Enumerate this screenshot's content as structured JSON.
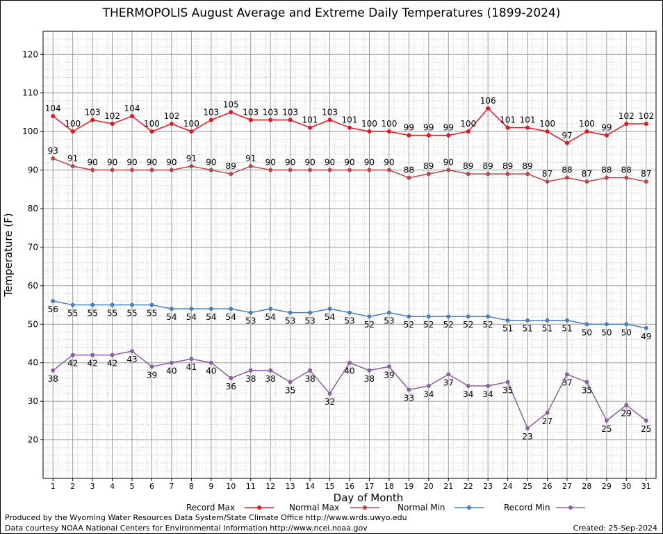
{
  "chart_data": {
    "type": "line",
    "title": "THERMOPOLIS August Average and Extreme Daily Temperatures (1899-2024)",
    "xlabel": "Day of Month",
    "ylabel": "Temperature (F)",
    "x": [
      1,
      2,
      3,
      4,
      5,
      6,
      7,
      8,
      9,
      10,
      11,
      12,
      13,
      14,
      15,
      16,
      17,
      18,
      19,
      20,
      21,
      22,
      23,
      24,
      25,
      26,
      27,
      28,
      29,
      30,
      31
    ],
    "xlim": [
      0.5,
      31.5
    ],
    "ylim": [
      10,
      126
    ],
    "yticks": [
      20,
      30,
      40,
      50,
      60,
      70,
      80,
      90,
      100,
      110,
      120
    ],
    "grid": true,
    "legend": "bottom",
    "series": [
      {
        "name": "Record Max",
        "color": "#e8141c",
        "values": [
          104,
          100,
          103,
          102,
          104,
          100,
          102,
          100,
          103,
          105,
          103,
          103,
          103,
          101,
          103,
          101,
          100,
          100,
          99,
          99,
          99,
          100,
          106,
          101,
          101,
          100,
          97,
          100,
          99,
          102,
          102
        ]
      },
      {
        "name": "Normal Max",
        "color": "#b94747",
        "values": [
          93,
          91,
          90,
          90,
          90,
          90,
          90,
          91,
          90,
          89,
          91,
          90,
          90,
          90,
          90,
          90,
          90,
          90,
          88,
          89,
          90,
          89,
          89,
          89,
          89,
          87,
          88,
          87,
          88,
          88,
          87
        ]
      },
      {
        "name": "Normal Min",
        "color": "#4a7fb8",
        "values": [
          56,
          55,
          55,
          55,
          55,
          55,
          54,
          54,
          54,
          54,
          53,
          54,
          53,
          53,
          54,
          53,
          52,
          53,
          52,
          52,
          52,
          52,
          52,
          51,
          51,
          51,
          51,
          50,
          50,
          50,
          49
        ]
      },
      {
        "name": "Record Min",
        "color": "#8a5fa0",
        "values": [
          38,
          42,
          42,
          42,
          43,
          39,
          40,
          41,
          40,
          36,
          38,
          38,
          35,
          38,
          32,
          40,
          38,
          39,
          33,
          34,
          37,
          34,
          34,
          35,
          23,
          27,
          37,
          35,
          25,
          29,
          25
        ]
      }
    ]
  },
  "footer": {
    "credit1": "Produced by the Wyoming Water Resources Data System/State Climate Office http://www.wrds.uwyo.edu",
    "credit2": "Data courtesy NOAA National Centers for Environmental Information http://www.ncei.noaa.gov",
    "created": "Created:  25-Sep-2024"
  }
}
